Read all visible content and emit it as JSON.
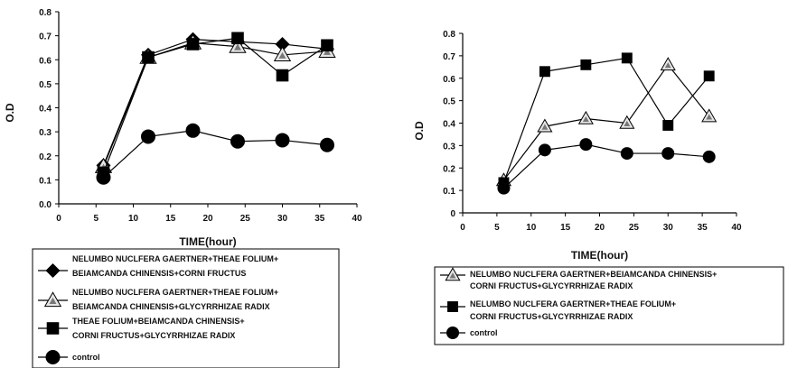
{
  "chart_data": [
    {
      "type": "line",
      "xlabel": "TIME(hour)",
      "ylabel": "O.D",
      "xlim": [
        0,
        40
      ],
      "ylim": [
        0,
        0.8
      ],
      "xticks": [
        "0",
        "5",
        "10",
        "15",
        "20",
        "25",
        "30",
        "35",
        "40"
      ],
      "yticks": [
        "0.0",
        "0.1",
        "0.2",
        "0.3",
        "0.4",
        "0.5",
        "0.6",
        "0.7",
        "0.8"
      ],
      "grid": false,
      "legend_position": "bottom",
      "x": [
        6,
        12,
        18,
        24,
        30,
        36
      ],
      "series": [
        {
          "name_lines": [
            "NELUMBO NUCLFERA GAERTNER+THEAE FOLIUM+",
            "BEIAMCANDA CHINENSIS+CORNI FRUCTUS"
          ],
          "marker": "diamond",
          "values": [
            0.16,
            0.62,
            0.685,
            0.675,
            0.665,
            0.645
          ]
        },
        {
          "name_lines": [
            "NELUMBO NUCLFERA GAERTNER+THEAE FOLIUM+",
            "BEIAMCANDA CHINENSIS+GLYCYRRHIZAE RADIX"
          ],
          "marker": "triangle",
          "values": [
            0.155,
            0.61,
            0.67,
            0.655,
            0.62,
            0.635
          ]
        },
        {
          "name_lines": [
            "THEAE FOLIUM+BEIAMCANDA CHINENSIS+",
            "CORNI FRUCTUS+GLYCYRRHIZAE RADIX"
          ],
          "marker": "square",
          "values": [
            0.13,
            0.61,
            0.665,
            0.69,
            0.535,
            0.66
          ]
        },
        {
          "name_lines": [
            "control"
          ],
          "marker": "circle",
          "values": [
            0.11,
            0.28,
            0.305,
            0.26,
            0.265,
            0.245
          ]
        }
      ]
    },
    {
      "type": "line",
      "xlabel": "TIME(hour)",
      "ylabel": "O.D",
      "xlim": [
        0,
        40
      ],
      "ylim": [
        0,
        0.8
      ],
      "xticks": [
        "0",
        "5",
        "10",
        "15",
        "20",
        "25",
        "30",
        "35",
        "40"
      ],
      "yticks": [
        "0",
        "0.1",
        "0.2",
        "0.3",
        "0.4",
        "0.5",
        "0.6",
        "0.7",
        "0.8"
      ],
      "grid": false,
      "legend_position": "bottom",
      "x": [
        6,
        12,
        18,
        24,
        30,
        36
      ],
      "series": [
        {
          "name_lines": [
            "NELUMBO NUCLFERA GAERTNER+BEIAMCANDA CHINENSIS+",
            "CORNI FRUCTUS+GLYCYRRHIZAE RADIX"
          ],
          "marker": "triangle",
          "values": [
            0.145,
            0.385,
            0.42,
            0.4,
            0.66,
            0.43
          ]
        },
        {
          "name_lines": [
            "NELUMBO NUCLFERA GAERTNER+THEAE FOLIUM+",
            "CORNI FRUCTUS+GLYCYRRHIZAE RADIX"
          ],
          "marker": "square",
          "values": [
            0.135,
            0.63,
            0.66,
            0.69,
            0.39,
            0.61
          ]
        },
        {
          "name_lines": [
            "control"
          ],
          "marker": "circle",
          "values": [
            0.11,
            0.28,
            0.305,
            0.265,
            0.265,
            0.25
          ]
        }
      ]
    }
  ]
}
